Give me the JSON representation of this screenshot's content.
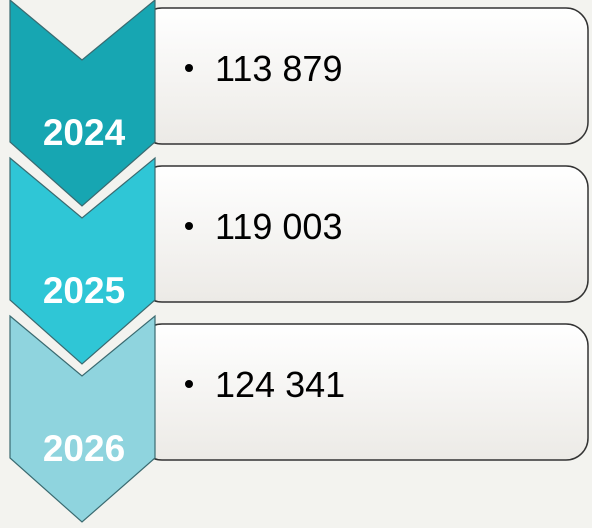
{
  "items": [
    {
      "year": "2024",
      "value": "113 879"
    },
    {
      "year": "2025",
      "value": "119 003"
    },
    {
      "year": "2026",
      "value": "124 341"
    }
  ]
}
